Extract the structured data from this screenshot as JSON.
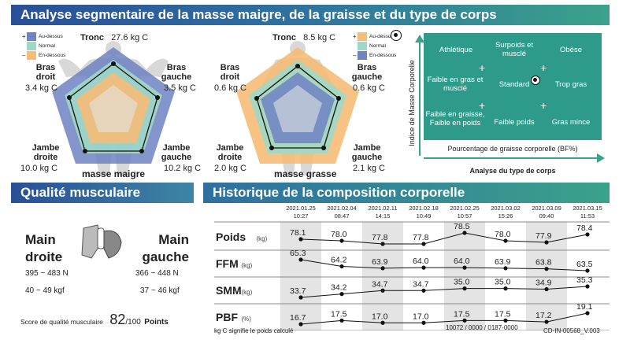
{
  "banners": {
    "segmental": "Analyse segmentaire de la masse maigre, de la graisse et du type de corps",
    "muscle_quality": "Qualité musculaire",
    "history": "Historique de la composition corporelle"
  },
  "legend": {
    "above": "Au-dessus",
    "normal": "Normal",
    "below": "En-dessous",
    "plus": "+",
    "minus": "–"
  },
  "colors": {
    "above": "#6f82c2",
    "normal": "#9fd8c8",
    "below": "#f5bd78",
    "chart_bg": "#2e9b8a",
    "header_blue": "#2a4f96",
    "header_teal": "#3aa28a"
  },
  "lean": {
    "title": "masse maigre",
    "trunk_label": "Tronc",
    "trunk_value": "27.6",
    "trunk_unit": "kg C",
    "right_arm_label_1": "Bras",
    "right_arm_label_2": "droit",
    "right_arm_value": "3.4",
    "right_arm_unit": "kg C",
    "left_arm_label_1": "Bras",
    "left_arm_label_2": "gauche",
    "left_arm_value": "3.5",
    "left_arm_unit": "kg C",
    "right_leg_label_1": "Jambe",
    "right_leg_label_2": "droite",
    "right_leg_value": "10.0",
    "right_leg_unit": "kg C",
    "left_leg_label_1": "Jambe",
    "left_leg_label_2": "gauche",
    "left_leg_value": "10.2",
    "left_leg_unit": "kg C"
  },
  "fat": {
    "title": "masse grasse",
    "trunk_label": "Tronc",
    "trunk_value": "8.5",
    "trunk_unit": "kg C",
    "right_arm_label_1": "Bras",
    "right_arm_label_2": "droit",
    "right_arm_value": "0.6",
    "right_arm_unit": "kg C",
    "left_arm_label_1": "Bras",
    "left_arm_label_2": "gauche",
    "left_arm_value": "0.6",
    "left_arm_unit": "kg C",
    "right_leg_label_1": "Jambe",
    "right_leg_label_2": "droite",
    "right_leg_value": "2.0",
    "right_leg_unit": "kg C",
    "left_leg_label_1": "Jambe",
    "left_leg_label_2": "gauche",
    "left_leg_value": "2.1",
    "left_leg_unit": "kg C"
  },
  "body_type": {
    "ylabel": "Indice de Masse Corporelle",
    "xlabel": "Pourcentage de graisse corporelle (BF%)",
    "caption": "Analyse du type de corps",
    "cells": [
      "Athlétique",
      "Surpoids et musclé",
      "Obèse",
      "Faible en gras et musclé",
      "Standard",
      "Trop gras",
      "Faible en graisse, Faible en poids",
      "Faible poids",
      "Gras mince"
    ]
  },
  "muscle_quality": {
    "right_hand_1": "Main",
    "right_hand_2": "droite",
    "left_hand_1": "Main",
    "left_hand_2": "gauche",
    "right_n": "395 ~ 483 N",
    "right_kgf": "40 ~ 49 kgf",
    "left_n": "366 ~ 448 N",
    "left_kgf": "37 ~ 46 kgf",
    "score_label": "Score de qualité musculaire",
    "score_value": "82",
    "score_suffix": "/100",
    "score_unit": "Points"
  },
  "history": {
    "dates": [
      "2021.01.25",
      "2021.02.04",
      "2021.02.11",
      "2021.02.18",
      "2021.02.25",
      "2021.03.02",
      "2021.03.09",
      "2021.03.15"
    ],
    "times": [
      "10:27",
      "08:47",
      "14:15",
      "10:49",
      "10:57",
      "15:26",
      "09:40",
      "11:53"
    ],
    "rows": [
      {
        "name": "Poids",
        "unit": "(kg)",
        "values": [
          "78.1",
          "78.0",
          "77.8",
          "77.8",
          "78.5",
          "78.0",
          "77.9",
          "78.4"
        ]
      },
      {
        "name": "FFM",
        "unit": "(kg)",
        "values": [
          "65.3",
          "64.2",
          "63.9",
          "64.0",
          "64.0",
          "63.9",
          "63.8",
          "63.5"
        ]
      },
      {
        "name": "SMM",
        "unit": "(kg)",
        "values": [
          "33.7",
          "34.2",
          "34.7",
          "34.7",
          "35.0",
          "35.0",
          "34.9",
          "35.3"
        ]
      },
      {
        "name": "PBF",
        "unit": "(%)",
        "values": [
          "16.7",
          "17.5",
          "17.0",
          "17.0",
          "17.5",
          "17.5",
          "17.2",
          "19.1"
        ]
      }
    ],
    "footnote": "kg C signifie le poids calculé",
    "code": "10072 / 0000 / 0187-0000",
    "doc_id": "CD-IN-00568_V.003"
  }
}
